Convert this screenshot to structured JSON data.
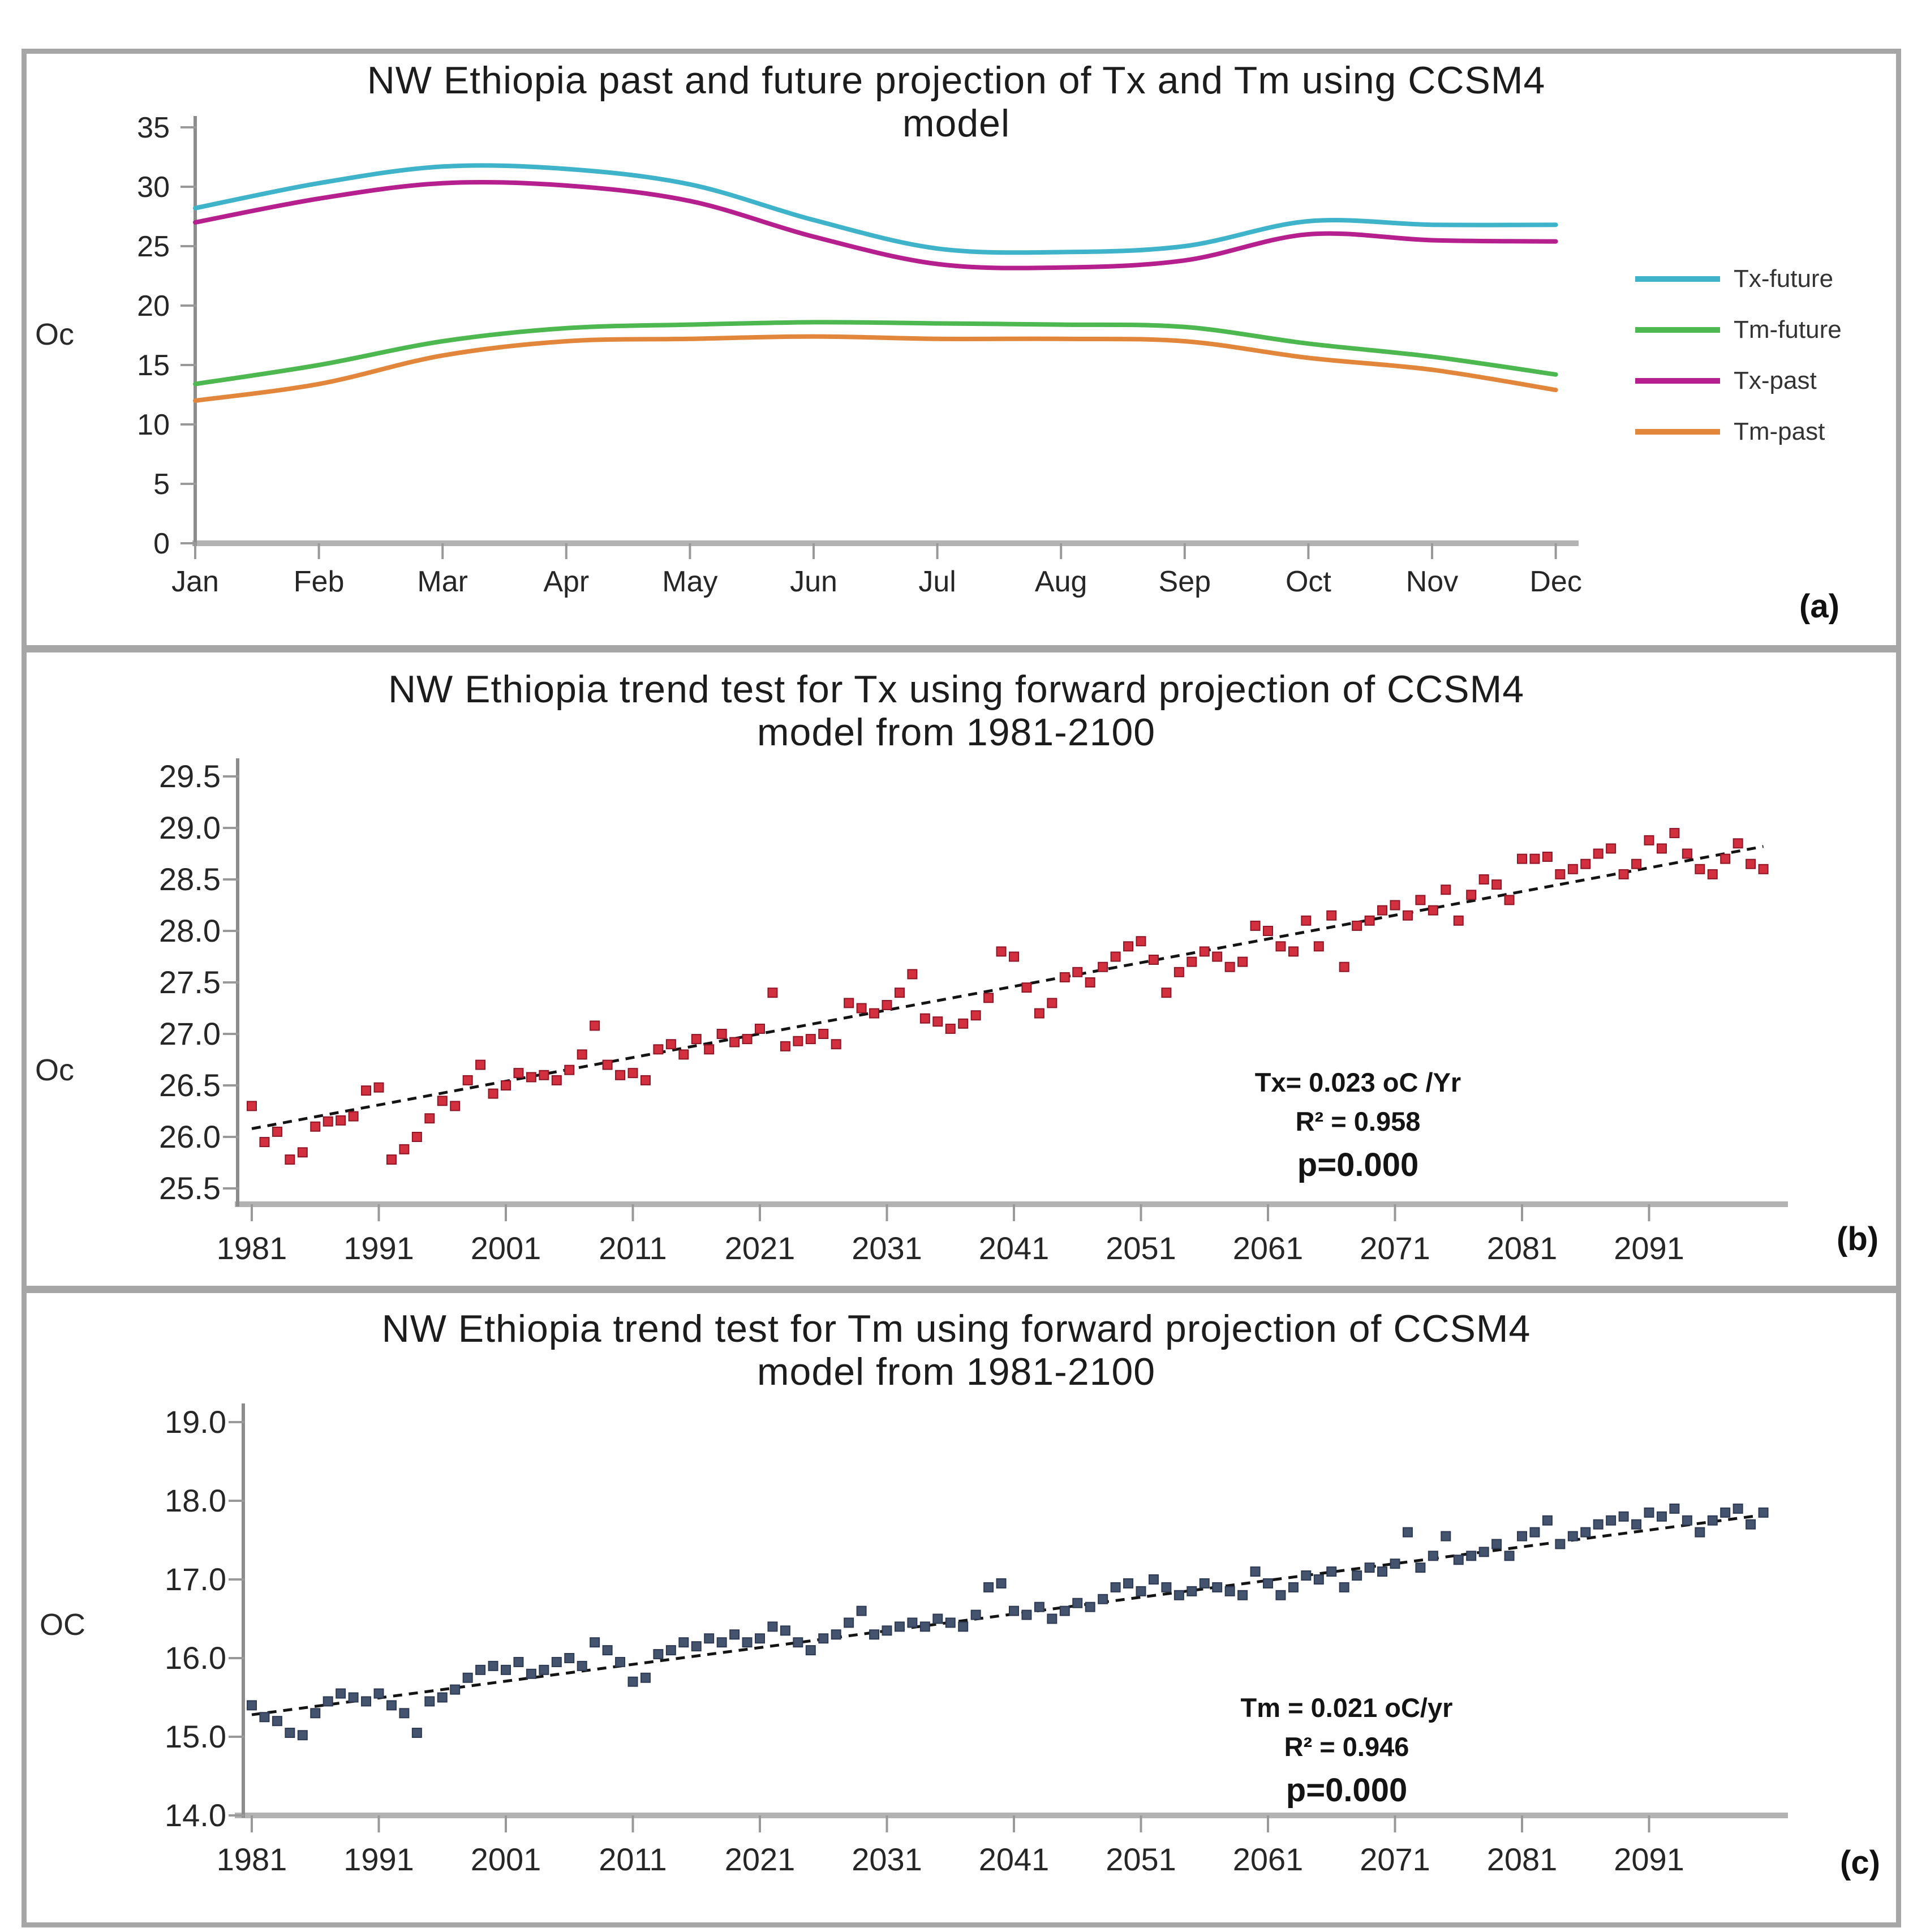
{
  "panel_a": {
    "title1": "NW Ethiopia past and future projection of Tx and Tm using CCSM4",
    "title2": "model",
    "ylabel": "Oc",
    "panel_label": "(a)",
    "legend": [
      {
        "label": "Tx-future",
        "color": "#3eb3c9"
      },
      {
        "label": "Tm-future",
        "color": "#4db84f"
      },
      {
        "label": "Tx-past",
        "color": "#b51f8e"
      },
      {
        "label": "Tm-past",
        "color": "#e2863b"
      }
    ],
    "chart_data": {
      "type": "line",
      "title": "NW Ethiopia past and future projection of Tx and Tm using CCSM4 model",
      "ylabel": "Oc",
      "ylim": [
        0,
        35
      ],
      "yticks": [
        0,
        5,
        10,
        15,
        20,
        25,
        30,
        35
      ],
      "grid": false,
      "legend_position": "right",
      "categories": [
        "Jan",
        "Feb",
        "Mar",
        "Apr",
        "May",
        "Jun",
        "Jul",
        "Aug",
        "Sep",
        "Oct",
        "Nov",
        "Dec"
      ],
      "series": [
        {
          "name": "Tx-future",
          "color": "#3eb3c9",
          "values": [
            28.2,
            30.3,
            31.7,
            31.5,
            30.2,
            27.2,
            24.8,
            24.5,
            25.0,
            27.1,
            26.8,
            26.8
          ]
        },
        {
          "name": "Tx-past",
          "color": "#b51f8e",
          "values": [
            27.0,
            29.0,
            30.3,
            30.1,
            28.8,
            25.8,
            23.5,
            23.2,
            23.8,
            26.0,
            25.5,
            25.4
          ]
        },
        {
          "name": "Tm-future",
          "color": "#4db84f",
          "values": [
            13.4,
            15.0,
            17.0,
            18.1,
            18.4,
            18.6,
            18.5,
            18.4,
            18.2,
            16.8,
            15.7,
            14.2
          ]
        },
        {
          "name": "Tm-past",
          "color": "#e2863b",
          "values": [
            12.0,
            13.4,
            15.8,
            17.0,
            17.2,
            17.4,
            17.2,
            17.2,
            17.0,
            15.6,
            14.6,
            12.9
          ]
        }
      ]
    }
  },
  "panel_b": {
    "title1": "NW Ethiopia trend test for Tx using forward projection of CCSM4",
    "title2": "model from 1981-2100",
    "ylabel": "Oc",
    "panel_label": "(b)",
    "annotation": {
      "line1": "Tx= 0.023 oC /Yr",
      "line2": "R² = 0.958",
      "line3": "p=0.000"
    },
    "chart_data": {
      "type": "scatter",
      "title": "NW Ethiopia trend test for Tx using forward projection of CCSM4 model from 1981-2100",
      "ylabel": "Oc",
      "ylim": [
        25.5,
        29.5
      ],
      "yticks": [
        25.5,
        26.0,
        26.5,
        27.0,
        27.5,
        28.0,
        28.5,
        29.0,
        29.5
      ],
      "xticks": [
        1981,
        1991,
        2001,
        2011,
        2021,
        2031,
        2041,
        2051,
        2061,
        2071,
        2081,
        2091
      ],
      "marker_color": "#d2303e",
      "marker_edge": "#8e1626",
      "trend": {
        "x": [
          1981,
          2100
        ],
        "y": [
          26.08,
          28.82
        ],
        "style": "dashed",
        "color": "#141414",
        "slope_per_year": 0.023,
        "r_squared": 0.958,
        "p_value": 0.0
      },
      "points": [
        [
          1981,
          26.3
        ],
        [
          1982,
          25.95
        ],
        [
          1983,
          26.05
        ],
        [
          1984,
          25.78
        ],
        [
          1985,
          25.85
        ],
        [
          1986,
          26.1
        ],
        [
          1987,
          26.15
        ],
        [
          1988,
          26.16
        ],
        [
          1989,
          26.2
        ],
        [
          1990,
          26.45
        ],
        [
          1991,
          26.48
        ],
        [
          1992,
          25.78
        ],
        [
          1993,
          25.88
        ],
        [
          1994,
          26.0
        ],
        [
          1995,
          26.18
        ],
        [
          1996,
          26.35
        ],
        [
          1997,
          26.3
        ],
        [
          1998,
          26.55
        ],
        [
          1999,
          26.7
        ],
        [
          2000,
          26.42
        ],
        [
          2001,
          26.5
        ],
        [
          2002,
          26.62
        ],
        [
          2003,
          26.58
        ],
        [
          2004,
          26.6
        ],
        [
          2005,
          26.55
        ],
        [
          2006,
          26.65
        ],
        [
          2007,
          26.8
        ],
        [
          2008,
          27.08
        ],
        [
          2009,
          26.7
        ],
        [
          2010,
          26.6
        ],
        [
          2011,
          26.62
        ],
        [
          2012,
          26.55
        ],
        [
          2013,
          26.85
        ],
        [
          2014,
          26.9
        ],
        [
          2015,
          26.8
        ],
        [
          2016,
          26.95
        ],
        [
          2017,
          26.85
        ],
        [
          2018,
          27.0
        ],
        [
          2019,
          26.92
        ],
        [
          2020,
          26.95
        ],
        [
          2021,
          27.05
        ],
        [
          2022,
          27.4
        ],
        [
          2023,
          26.88
        ],
        [
          2024,
          26.93
        ],
        [
          2025,
          26.95
        ],
        [
          2026,
          27.0
        ],
        [
          2027,
          26.9
        ],
        [
          2028,
          27.3
        ],
        [
          2029,
          27.25
        ],
        [
          2030,
          27.2
        ],
        [
          2031,
          27.28
        ],
        [
          2032,
          27.4
        ],
        [
          2033,
          27.58
        ],
        [
          2034,
          27.15
        ],
        [
          2035,
          27.12
        ],
        [
          2036,
          27.05
        ],
        [
          2037,
          27.1
        ],
        [
          2038,
          27.18
        ],
        [
          2039,
          27.35
        ],
        [
          2040,
          27.8
        ],
        [
          2041,
          27.75
        ],
        [
          2042,
          27.45
        ],
        [
          2043,
          27.2
        ],
        [
          2044,
          27.3
        ],
        [
          2045,
          27.55
        ],
        [
          2046,
          27.6
        ],
        [
          2047,
          27.5
        ],
        [
          2048,
          27.65
        ],
        [
          2049,
          27.75
        ],
        [
          2050,
          27.85
        ],
        [
          2051,
          27.9
        ],
        [
          2052,
          27.72
        ],
        [
          2053,
          27.4
        ],
        [
          2054,
          27.6
        ],
        [
          2055,
          27.7
        ],
        [
          2056,
          27.8
        ],
        [
          2057,
          27.75
        ],
        [
          2058,
          27.65
        ],
        [
          2059,
          27.7
        ],
        [
          2060,
          28.05
        ],
        [
          2061,
          28.0
        ],
        [
          2062,
          27.85
        ],
        [
          2063,
          27.8
        ],
        [
          2064,
          28.1
        ],
        [
          2065,
          27.85
        ],
        [
          2066,
          28.15
        ],
        [
          2067,
          27.65
        ],
        [
          2068,
          28.05
        ],
        [
          2069,
          28.1
        ],
        [
          2070,
          28.2
        ],
        [
          2071,
          28.25
        ],
        [
          2072,
          28.15
        ],
        [
          2073,
          28.3
        ],
        [
          2074,
          28.2
        ],
        [
          2075,
          28.4
        ],
        [
          2076,
          28.1
        ],
        [
          2077,
          28.35
        ],
        [
          2078,
          28.5
        ],
        [
          2079,
          28.45
        ],
        [
          2080,
          28.3
        ],
        [
          2081,
          28.7
        ],
        [
          2082,
          28.7
        ],
        [
          2083,
          28.72
        ],
        [
          2084,
          28.55
        ],
        [
          2085,
          28.6
        ],
        [
          2086,
          28.65
        ],
        [
          2087,
          28.75
        ],
        [
          2088,
          28.8
        ],
        [
          2089,
          28.55
        ],
        [
          2090,
          28.65
        ],
        [
          2091,
          28.88
        ],
        [
          2092,
          28.8
        ],
        [
          2093,
          28.95
        ],
        [
          2094,
          28.75
        ],
        [
          2095,
          28.6
        ],
        [
          2096,
          28.55
        ],
        [
          2097,
          28.7
        ],
        [
          2098,
          28.85
        ],
        [
          2099,
          28.65
        ],
        [
          2100,
          28.6
        ]
      ]
    }
  },
  "panel_c": {
    "title1": "NW Ethiopia trend test for Tm using forward projection of CCSM4",
    "title2": "model from 1981-2100",
    "ylabel": "OC",
    "panel_label": "(c)",
    "annotation": {
      "line1": "Tm = 0.021 oC/yr",
      "line2": "R² = 0.946",
      "line3": "p=0.000"
    },
    "chart_data": {
      "type": "scatter",
      "title": "NW Ethiopia trend test for Tm using forward projection of CCSM4 model from 1981-2100",
      "ylabel": "OC",
      "ylim": [
        14.0,
        19.0
      ],
      "yticks": [
        14.0,
        15.0,
        16.0,
        17.0,
        18.0,
        19.0
      ],
      "xticks": [
        1981,
        1991,
        2001,
        2011,
        2021,
        2031,
        2041,
        2051,
        2061,
        2071,
        2081,
        2091
      ],
      "marker_color": "#44536e",
      "marker_edge": "#2e3a52",
      "trend": {
        "x": [
          1981,
          2100
        ],
        "y": [
          15.28,
          17.82
        ],
        "style": "dashed",
        "color": "#141414",
        "slope_per_year": 0.021,
        "r_squared": 0.946,
        "p_value": 0.0
      },
      "points": [
        [
          1981,
          15.4
        ],
        [
          1982,
          15.25
        ],
        [
          1983,
          15.2
        ],
        [
          1984,
          15.05
        ],
        [
          1985,
          15.02
        ],
        [
          1986,
          15.3
        ],
        [
          1987,
          15.45
        ],
        [
          1988,
          15.55
        ],
        [
          1989,
          15.5
        ],
        [
          1990,
          15.45
        ],
        [
          1991,
          15.55
        ],
        [
          1992,
          15.4
        ],
        [
          1993,
          15.3
        ],
        [
          1994,
          15.05
        ],
        [
          1995,
          15.45
        ],
        [
          1996,
          15.5
        ],
        [
          1997,
          15.6
        ],
        [
          1998,
          15.75
        ],
        [
          1999,
          15.85
        ],
        [
          2000,
          15.9
        ],
        [
          2001,
          15.85
        ],
        [
          2002,
          15.95
        ],
        [
          2003,
          15.8
        ],
        [
          2004,
          15.85
        ],
        [
          2005,
          15.95
        ],
        [
          2006,
          16.0
        ],
        [
          2007,
          15.9
        ],
        [
          2008,
          16.2
        ],
        [
          2009,
          16.1
        ],
        [
          2010,
          15.95
        ],
        [
          2011,
          15.7
        ],
        [
          2012,
          15.75
        ],
        [
          2013,
          16.05
        ],
        [
          2014,
          16.1
        ],
        [
          2015,
          16.2
        ],
        [
          2016,
          16.15
        ],
        [
          2017,
          16.25
        ],
        [
          2018,
          16.2
        ],
        [
          2019,
          16.3
        ],
        [
          2020,
          16.2
        ],
        [
          2021,
          16.25
        ],
        [
          2022,
          16.4
        ],
        [
          2023,
          16.35
        ],
        [
          2024,
          16.2
        ],
        [
          2025,
          16.1
        ],
        [
          2026,
          16.25
        ],
        [
          2027,
          16.3
        ],
        [
          2028,
          16.45
        ],
        [
          2029,
          16.6
        ],
        [
          2030,
          16.3
        ],
        [
          2031,
          16.35
        ],
        [
          2032,
          16.4
        ],
        [
          2033,
          16.45
        ],
        [
          2034,
          16.4
        ],
        [
          2035,
          16.5
        ],
        [
          2036,
          16.45
        ],
        [
          2037,
          16.4
        ],
        [
          2038,
          16.55
        ],
        [
          2039,
          16.9
        ],
        [
          2040,
          16.95
        ],
        [
          2041,
          16.6
        ],
        [
          2042,
          16.55
        ],
        [
          2043,
          16.65
        ],
        [
          2044,
          16.5
        ],
        [
          2045,
          16.6
        ],
        [
          2046,
          16.7
        ],
        [
          2047,
          16.65
        ],
        [
          2048,
          16.75
        ],
        [
          2049,
          16.9
        ],
        [
          2050,
          16.95
        ],
        [
          2051,
          16.85
        ],
        [
          2052,
          17.0
        ],
        [
          2053,
          16.9
        ],
        [
          2054,
          16.8
        ],
        [
          2055,
          16.85
        ],
        [
          2056,
          16.95
        ],
        [
          2057,
          16.9
        ],
        [
          2058,
          16.85
        ],
        [
          2059,
          16.8
        ],
        [
          2060,
          17.1
        ],
        [
          2061,
          16.95
        ],
        [
          2062,
          16.8
        ],
        [
          2063,
          16.9
        ],
        [
          2064,
          17.05
        ],
        [
          2065,
          17.0
        ],
        [
          2066,
          17.1
        ],
        [
          2067,
          16.9
        ],
        [
          2068,
          17.05
        ],
        [
          2069,
          17.15
        ],
        [
          2070,
          17.1
        ],
        [
          2071,
          17.2
        ],
        [
          2072,
          17.6
        ],
        [
          2073,
          17.15
        ],
        [
          2074,
          17.3
        ],
        [
          2075,
          17.55
        ],
        [
          2076,
          17.25
        ],
        [
          2077,
          17.3
        ],
        [
          2078,
          17.35
        ],
        [
          2079,
          17.45
        ],
        [
          2080,
          17.3
        ],
        [
          2081,
          17.55
        ],
        [
          2082,
          17.6
        ],
        [
          2083,
          17.75
        ],
        [
          2084,
          17.45
        ],
        [
          2085,
          17.55
        ],
        [
          2086,
          17.6
        ],
        [
          2087,
          17.7
        ],
        [
          2088,
          17.75
        ],
        [
          2089,
          17.8
        ],
        [
          2090,
          17.7
        ],
        [
          2091,
          17.85
        ],
        [
          2092,
          17.8
        ],
        [
          2093,
          17.9
        ],
        [
          2094,
          17.75
        ],
        [
          2095,
          17.6
        ],
        [
          2096,
          17.75
        ],
        [
          2097,
          17.85
        ],
        [
          2098,
          17.9
        ],
        [
          2099,
          17.7
        ],
        [
          2100,
          17.85
        ]
      ]
    }
  }
}
